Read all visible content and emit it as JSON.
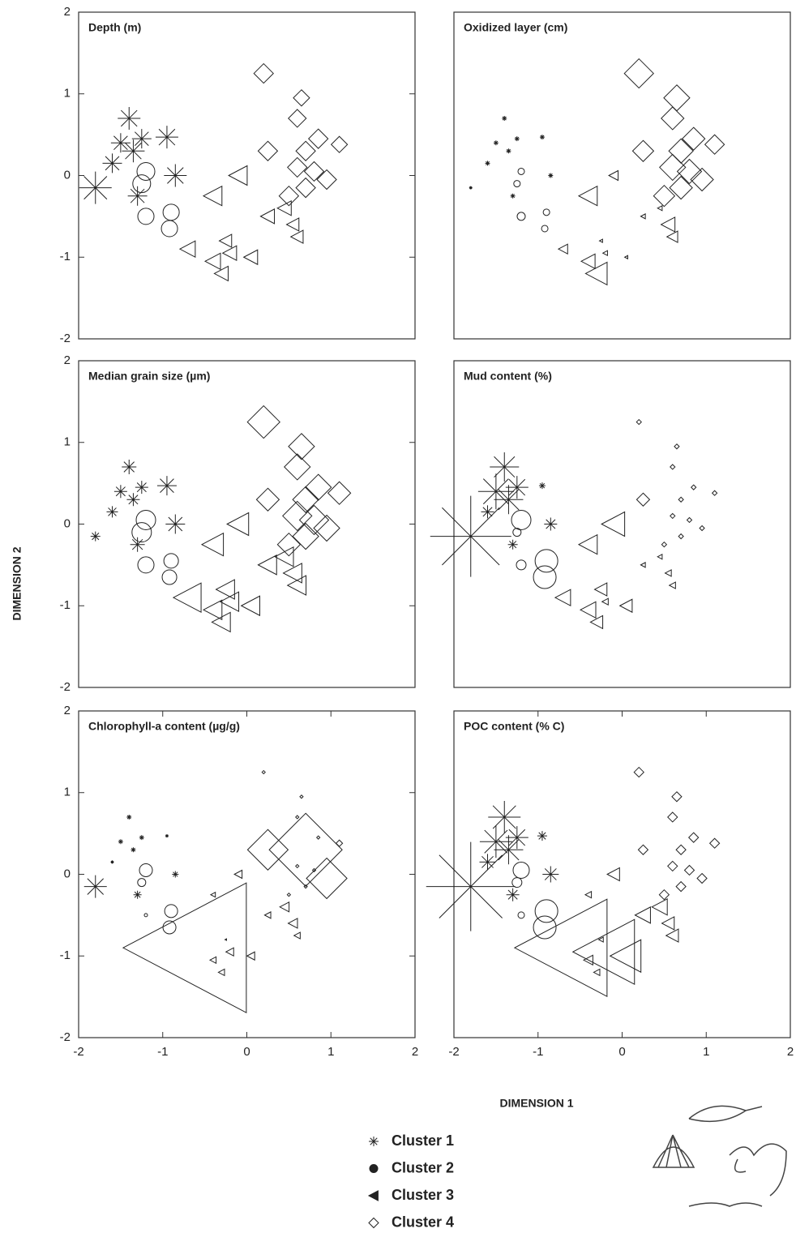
{
  "xlabel": "DIMENSION 1",
  "ylabel": "DIMENSION 2",
  "chart_data": [
    {
      "type": "scatter",
      "title": "Depth (m)",
      "xlim": [
        -2,
        2
      ],
      "ylim": [
        -2,
        2
      ],
      "yticks": [
        -2,
        -1,
        0,
        1,
        2
      ],
      "series": [
        {
          "name": "Cluster 1",
          "marker": "asterisk",
          "color": "#222",
          "x": [
            -1.4,
            -1.5,
            -1.35,
            -1.6,
            -1.25,
            -0.95,
            -0.85,
            -1.8,
            -1.3
          ],
          "y": [
            0.7,
            0.4,
            0.3,
            0.15,
            0.45,
            0.47,
            0,
            -0.15,
            -0.25
          ],
          "sizes": [
            14,
            12,
            14,
            12,
            12,
            14,
            14,
            20,
            12
          ]
        },
        {
          "name": "Cluster 2",
          "marker": "circle",
          "color": "#222",
          "x": [
            -1.2,
            -1.25,
            -1.2,
            -0.9,
            -0.92
          ],
          "y": [
            0.05,
            -0.1,
            -0.5,
            -0.45,
            -0.65
          ],
          "sizes": [
            11,
            11,
            10,
            10,
            10
          ]
        },
        {
          "name": "Cluster 3",
          "marker": "triangle",
          "color": "#222",
          "x": [
            -0.1,
            -0.4,
            -0.7,
            -0.4,
            -0.3,
            -0.2,
            0.05,
            0.25,
            0.45,
            0.55,
            0.6,
            -0.25
          ],
          "y": [
            0,
            -0.25,
            -0.9,
            -1.05,
            -1.2,
            -0.95,
            -1,
            -0.5,
            -0.4,
            -0.6,
            -0.75,
            -0.8
          ],
          "sizes": [
            12,
            12,
            10,
            10,
            9,
            9,
            9,
            9,
            9,
            8,
            8,
            8
          ]
        },
        {
          "name": "Cluster 4",
          "marker": "diamond",
          "color": "#222",
          "x": [
            0.2,
            0.65,
            0.6,
            0.25,
            0.7,
            0.85,
            0.6,
            0.8,
            0.95,
            0.7,
            0.5,
            1.1
          ],
          "y": [
            1.25,
            0.95,
            0.7,
            0.3,
            0.3,
            0.45,
            0.1,
            0.05,
            -0.05,
            -0.15,
            -0.25,
            0.38
          ],
          "sizes": [
            12,
            10,
            11,
            12,
            12,
            12,
            12,
            12,
            12,
            12,
            12,
            10
          ]
        }
      ]
    },
    {
      "type": "scatter",
      "title": "Oxidized layer (cm)",
      "xlim": [
        -2,
        2
      ],
      "ylim": [
        -2,
        2
      ],
      "series": [
        {
          "name": "Cluster 1",
          "marker": "asterisk",
          "color": "#222",
          "x": [
            -1.4,
            -1.5,
            -1.35,
            -1.6,
            -1.25,
            -0.95,
            -0.85,
            -1.8,
            -1.3
          ],
          "y": [
            0.7,
            0.4,
            0.3,
            0.15,
            0.45,
            0.47,
            0,
            -0.15,
            -0.25
          ],
          "sizes": [
            3,
            3,
            3,
            3,
            3,
            3,
            3,
            2,
            3
          ]
        },
        {
          "name": "Cluster 2",
          "marker": "circle",
          "color": "#222",
          "x": [
            -1.2,
            -1.25,
            -1.2,
            -0.9,
            -0.92
          ],
          "y": [
            0.05,
            -0.1,
            -0.5,
            -0.45,
            -0.65
          ],
          "sizes": [
            4,
            4,
            5,
            4,
            4
          ]
        },
        {
          "name": "Cluster 3",
          "marker": "triangle",
          "color": "#222",
          "x": [
            -0.1,
            -0.4,
            -0.7,
            -0.4,
            -0.3,
            -0.2,
            0.05,
            0.25,
            0.45,
            0.55,
            0.6,
            -0.25
          ],
          "y": [
            0,
            -0.25,
            -0.9,
            -1.05,
            -1.2,
            -0.95,
            -1,
            -0.5,
            -0.4,
            -0.6,
            -0.75,
            -0.8
          ],
          "sizes": [
            6,
            12,
            6,
            9,
            14,
            3,
            2,
            3,
            3,
            9,
            7,
            2
          ]
        },
        {
          "name": "Cluster 4",
          "marker": "diamond",
          "color": "#222",
          "x": [
            0.2,
            0.65,
            0.6,
            0.25,
            0.7,
            0.85,
            0.6,
            0.8,
            0.95,
            0.7,
            0.5,
            1.1
          ],
          "y": [
            1.25,
            0.95,
            0.7,
            0.3,
            0.3,
            0.45,
            0.1,
            0.05,
            -0.05,
            -0.15,
            -0.25,
            0.38
          ],
          "sizes": [
            18,
            16,
            14,
            13,
            15,
            14,
            16,
            15,
            14,
            14,
            13,
            12
          ]
        }
      ]
    },
    {
      "type": "scatter",
      "title": "Median grain size (µm)",
      "xlim": [
        -2,
        2
      ],
      "ylim": [
        -2,
        2
      ],
      "yticks": [
        -2,
        -1,
        0,
        1,
        2
      ],
      "series": [
        {
          "name": "Cluster 1",
          "marker": "asterisk",
          "color": "#222",
          "x": [
            -1.4,
            -1.5,
            -1.35,
            -1.6,
            -1.25,
            -0.95,
            -0.85,
            -1.8,
            -1.3
          ],
          "y": [
            0.7,
            0.4,
            0.3,
            0.15,
            0.45,
            0.47,
            0,
            -0.15,
            -0.25
          ],
          "sizes": [
            9,
            8,
            8,
            7,
            8,
            12,
            12,
            6,
            9
          ]
        },
        {
          "name": "Cluster 2",
          "marker": "circle",
          "color": "#222",
          "x": [
            -1.2,
            -1.25,
            -1.2,
            -0.9,
            -0.92
          ],
          "y": [
            0.05,
            -0.1,
            -0.5,
            -0.45,
            -0.65
          ],
          "sizes": [
            12,
            12,
            10,
            9,
            9
          ]
        },
        {
          "name": "Cluster 3",
          "marker": "triangle",
          "color": "#222",
          "x": [
            -0.1,
            -0.4,
            -0.7,
            -0.4,
            -0.3,
            -0.2,
            0.05,
            0.25,
            0.45,
            0.55,
            0.6,
            -0.25
          ],
          "y": [
            0,
            -0.25,
            -0.9,
            -1.05,
            -1.2,
            -0.95,
            -1,
            -0.5,
            -0.4,
            -0.6,
            -0.75,
            -0.8
          ],
          "sizes": [
            14,
            14,
            18,
            12,
            12,
            12,
            12,
            12,
            12,
            12,
            12,
            12
          ]
        },
        {
          "name": "Cluster 4",
          "marker": "diamond",
          "color": "#222",
          "x": [
            0.2,
            0.65,
            0.6,
            0.25,
            0.7,
            0.85,
            0.6,
            0.8,
            0.95,
            0.7,
            0.5,
            1.1
          ],
          "y": [
            1.25,
            0.95,
            0.7,
            0.3,
            0.3,
            0.45,
            0.1,
            0.05,
            -0.05,
            -0.15,
            -0.25,
            0.38
          ],
          "sizes": [
            20,
            16,
            16,
            14,
            16,
            16,
            18,
            18,
            16,
            16,
            14,
            14
          ]
        }
      ]
    },
    {
      "type": "scatter",
      "title": "Mud content (%)",
      "xlim": [
        -2,
        2
      ],
      "ylim": [
        -2,
        2
      ],
      "series": [
        {
          "name": "Cluster 1",
          "marker": "asterisk",
          "color": "#222",
          "x": [
            -1.4,
            -1.5,
            -1.35,
            -1.6,
            -1.25,
            -0.95,
            -0.85,
            -1.8,
            -1.3
          ],
          "y": [
            0.7,
            0.4,
            0.3,
            0.15,
            0.45,
            0.47,
            0,
            -0.15,
            -0.25
          ],
          "sizes": [
            18,
            22,
            18,
            8,
            14,
            4,
            8,
            50,
            6
          ]
        },
        {
          "name": "Cluster 2",
          "marker": "circle",
          "color": "#222",
          "x": [
            -1.2,
            -1.25,
            -1.2,
            -0.9,
            -0.92
          ],
          "y": [
            0.05,
            -0.1,
            -0.5,
            -0.45,
            -0.65
          ],
          "sizes": [
            12,
            5,
            6,
            14,
            14
          ]
        },
        {
          "name": "Cluster 3",
          "marker": "triangle",
          "color": "#222",
          "x": [
            -0.1,
            -0.4,
            -0.7,
            -0.4,
            -0.3,
            -0.2,
            0.05,
            0.25,
            0.45,
            0.55,
            0.6,
            -0.25
          ],
          "y": [
            0,
            -0.25,
            -0.9,
            -1.05,
            -1.2,
            -0.95,
            -1,
            -0.5,
            -0.4,
            -0.6,
            -0.75,
            -0.8
          ],
          "sizes": [
            15,
            12,
            10,
            10,
            8,
            4,
            8,
            3,
            3,
            4,
            4,
            8
          ]
        },
        {
          "name": "Cluster 4",
          "marker": "diamond",
          "color": "#222",
          "x": [
            0.2,
            0.65,
            0.6,
            0.25,
            0.7,
            0.85,
            0.6,
            0.8,
            0.95,
            0.7,
            0.5,
            1.1
          ],
          "y": [
            1.25,
            0.95,
            0.7,
            0.3,
            0.3,
            0.45,
            0.1,
            0.05,
            -0.05,
            -0.15,
            -0.25,
            0.38
          ],
          "sizes": [
            3,
            3,
            3,
            8,
            3,
            3,
            3,
            3,
            3,
            3,
            3,
            3
          ]
        }
      ]
    },
    {
      "type": "scatter",
      "title": "Chlorophyll-a content (µg/g)",
      "xlim": [
        -2,
        2
      ],
      "ylim": [
        -2,
        2
      ],
      "yticks": [
        -2,
        -1,
        0,
        1,
        2
      ],
      "xticks": [
        -2,
        -1,
        0,
        1,
        2
      ],
      "series": [
        {
          "name": "Cluster 1",
          "marker": "asterisk",
          "color": "#222",
          "x": [
            -1.4,
            -1.5,
            -1.35,
            -1.6,
            -1.25,
            -0.95,
            -0.85,
            -1.8,
            -1.3
          ],
          "y": [
            0.7,
            0.4,
            0.3,
            0.15,
            0.45,
            0.47,
            0,
            -0.15,
            -0.25
          ],
          "sizes": [
            3,
            3,
            3,
            2,
            3,
            2,
            4,
            14,
            5
          ]
        },
        {
          "name": "Cluster 2",
          "marker": "circle",
          "color": "#222",
          "x": [
            -1.2,
            -1.25,
            -1.2,
            -0.9,
            -0.92
          ],
          "y": [
            0.05,
            -0.1,
            -0.5,
            -0.45,
            -0.65
          ],
          "sizes": [
            8,
            5,
            2,
            8,
            8
          ]
        },
        {
          "name": "Cluster 3",
          "marker": "triangle",
          "color": "#222",
          "x": [
            -0.1,
            -0.4,
            -0.7,
            -0.4,
            -0.3,
            -0.2,
            0.05,
            0.25,
            0.45,
            0.55,
            0.6,
            -0.25
          ],
          "y": [
            0,
            -0.25,
            -0.9,
            -1.05,
            -1.2,
            -0.95,
            -1,
            -0.5,
            -0.4,
            -0.6,
            -0.75,
            -0.8
          ],
          "sizes": [
            5,
            3,
            80,
            4,
            4,
            5,
            5,
            4,
            6,
            6,
            4,
            1
          ]
        },
        {
          "name": "Cluster 4",
          "marker": "diamond",
          "color": "#222",
          "x": [
            0.2,
            0.65,
            0.6,
            0.25,
            0.7,
            0.85,
            0.6,
            0.8,
            0.95,
            0.7,
            0.5,
            1.1
          ],
          "y": [
            1.25,
            0.95,
            0.7,
            0.3,
            0.3,
            0.45,
            0.1,
            0.05,
            -0.05,
            -0.15,
            -0.25,
            0.38
          ],
          "sizes": [
            2,
            2,
            2,
            25,
            45,
            2,
            2,
            2,
            25,
            2,
            2,
            4
          ]
        }
      ]
    },
    {
      "type": "scatter",
      "title": "POC content (% C)",
      "xlim": [
        -2,
        2
      ],
      "ylim": [
        -2,
        2
      ],
      "xticks": [
        -2,
        -1,
        0,
        1,
        2
      ],
      "series": [
        {
          "name": "Cluster 1",
          "marker": "asterisk",
          "color": "#222",
          "x": [
            -1.4,
            -1.5,
            -1.35,
            -1.6,
            -1.25,
            -0.95,
            -0.85,
            -1.8,
            -1.3
          ],
          "y": [
            0.7,
            0.4,
            0.3,
            0.15,
            0.45,
            0.47,
            0,
            -0.15,
            -0.25
          ],
          "sizes": [
            20,
            20,
            18,
            10,
            14,
            6,
            10,
            55,
            8
          ]
        },
        {
          "name": "Cluster 2",
          "marker": "circle",
          "color": "#222",
          "x": [
            -1.2,
            -1.25,
            -1.2,
            -0.9,
            -0.92
          ],
          "y": [
            0.05,
            -0.1,
            -0.5,
            -0.45,
            -0.65
          ],
          "sizes": [
            10,
            6,
            4,
            14,
            14
          ]
        },
        {
          "name": "Cluster 3",
          "marker": "triangle",
          "color": "#222",
          "x": [
            -0.1,
            -0.4,
            -0.7,
            -0.4,
            -0.3,
            -0.2,
            0.05,
            0.25,
            0.45,
            0.55,
            0.6,
            -0.25
          ],
          "y": [
            0,
            -0.25,
            -0.9,
            -1.05,
            -1.2,
            -0.95,
            -1,
            -0.5,
            -0.4,
            -0.6,
            -0.75,
            -0.8
          ],
          "sizes": [
            8,
            4,
            60,
            6,
            4,
            40,
            20,
            10,
            10,
            8,
            8,
            3
          ]
        },
        {
          "name": "Cluster 4",
          "marker": "diamond",
          "color": "#222",
          "x": [
            0.2,
            0.65,
            0.6,
            0.25,
            0.7,
            0.85,
            0.6,
            0.8,
            0.95,
            0.7,
            0.5,
            1.1
          ],
          "y": [
            1.25,
            0.95,
            0.7,
            0.3,
            0.3,
            0.45,
            0.1,
            0.05,
            -0.05,
            -0.15,
            -0.25,
            0.38
          ],
          "sizes": [
            6,
            6,
            6,
            6,
            6,
            6,
            6,
            6,
            6,
            6,
            6,
            6
          ]
        }
      ]
    }
  ]
}
